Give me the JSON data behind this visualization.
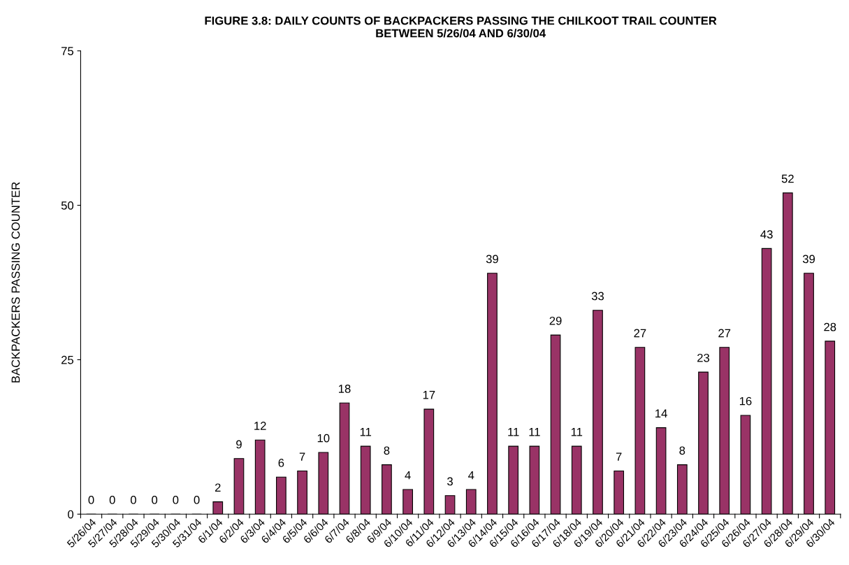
{
  "chart_data": {
    "type": "bar",
    "title": "FIGURE 3.8: DAILY COUNTS OF BACKPACKERS PASSING THE CHILKOOT TRAIL COUNTER\nBETWEEN 5/26/04 AND 6/30/04",
    "ylabel": "BACKPACKERS PASSING COUNTER",
    "categories": [
      "5/26/04",
      "5/27/04",
      "5/28/04",
      "5/29/04",
      "5/30/04",
      "5/31/04",
      "6/1/04",
      "6/2/04",
      "6/3/04",
      "6/4/04",
      "6/5/04",
      "6/6/04",
      "6/7/04",
      "6/8/04",
      "6/9/04",
      "6/10/04",
      "6/11/04",
      "6/12/04",
      "6/13/04",
      "6/14/04",
      "6/15/04",
      "6/16/04",
      "6/17/04",
      "6/18/04",
      "6/19/04",
      "6/20/04",
      "6/21/04",
      "6/22/04",
      "6/23/04",
      "6/24/04",
      "6/25/04",
      "6/26/04",
      "6/27/04",
      "6/28/04",
      "6/29/04",
      "6/30/04"
    ],
    "values": [
      0,
      0,
      0,
      0,
      0,
      0,
      2,
      9,
      12,
      6,
      7,
      10,
      18,
      11,
      8,
      4,
      17,
      3,
      4,
      39,
      11,
      11,
      29,
      11,
      33,
      7,
      27,
      14,
      8,
      23,
      27,
      16,
      43,
      52,
      39,
      28
    ],
    "color": "#993366",
    "ylim": [
      0,
      75
    ],
    "yticks": [
      0,
      25,
      50,
      75
    ],
    "grid": false,
    "data_labels": true
  }
}
